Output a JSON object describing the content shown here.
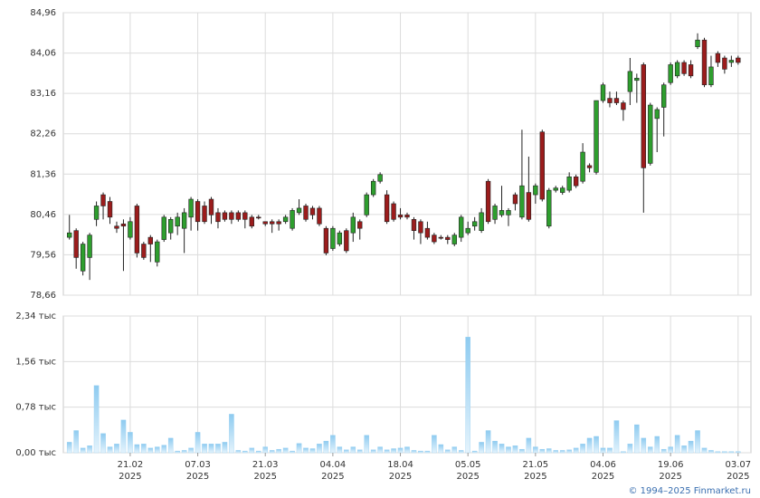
{
  "chart_data": [
    {
      "type": "candlestick",
      "up_color": "#2e9e2e",
      "down_color": "#9b1c1c",
      "ylim": [
        78.66,
        84.96
      ],
      "yticks": [
        {
          "value": 78.66,
          "label": "78,66"
        },
        {
          "value": 79.56,
          "label": "79,56"
        },
        {
          "value": 80.46,
          "label": "80,46"
        },
        {
          "value": 81.36,
          "label": "81,36"
        },
        {
          "value": 82.26,
          "label": "82,26"
        },
        {
          "value": 83.16,
          "label": "83,16"
        },
        {
          "value": 84.06,
          "label": "84,06"
        },
        {
          "value": 84.96,
          "label": "84,96"
        }
      ],
      "grid": true,
      "open": [
        79.95,
        80.1,
        79.2,
        79.5,
        80.35,
        80.9,
        80.75,
        80.2,
        80.25,
        79.95,
        80.65,
        79.8,
        79.95,
        79.4,
        79.9,
        80.05,
        80.2,
        80.15,
        80.4,
        80.75,
        80.65,
        80.8,
        80.5,
        80.5,
        80.5,
        80.5,
        80.5,
        80.4,
        80.4,
        80.3,
        80.3,
        80.3,
        80.3,
        80.15,
        80.5,
        80.65,
        80.6,
        80.6,
        80.15,
        79.7,
        79.8,
        80.1,
        80.05,
        80.3,
        80.45,
        80.9,
        81.2,
        80.9,
        80.7,
        80.45,
        80.45,
        80.35,
        80.3,
        80.15,
        80.0,
        79.95,
        79.95,
        79.8,
        79.95,
        80.05,
        80.2,
        80.1,
        81.2,
        80.35,
        80.45,
        80.45,
        80.9,
        80.4,
        80.95,
        80.9,
        82.3,
        80.2,
        81.0,
        80.95,
        81.0,
        81.3,
        81.2,
        81.55,
        81.4,
        83.0,
        83.05,
        83.05,
        82.95,
        83.2,
        83.45,
        83.8,
        81.6,
        82.6,
        82.85,
        83.4,
        83.55,
        83.85,
        83.8,
        84.2,
        84.35,
        83.35,
        84.05,
        83.95,
        83.85,
        83.95
      ],
      "high": [
        80.45,
        80.15,
        79.85,
        80.05,
        80.75,
        80.95,
        80.85,
        80.3,
        80.35,
        80.4,
        80.7,
        79.85,
        80.0,
        79.9,
        80.45,
        80.4,
        80.5,
        80.6,
        80.85,
        80.8,
        80.75,
        80.85,
        80.6,
        80.55,
        80.55,
        80.55,
        80.55,
        80.45,
        80.45,
        80.3,
        80.35,
        80.35,
        80.45,
        80.6,
        80.8,
        80.7,
        80.65,
        80.65,
        80.2,
        80.2,
        80.1,
        80.15,
        80.5,
        80.35,
        80.95,
        81.25,
        81.4,
        81.0,
        80.75,
        80.6,
        80.5,
        80.4,
        80.35,
        80.3,
        80.05,
        80.0,
        80.0,
        80.05,
        80.45,
        80.3,
        80.4,
        80.6,
        81.25,
        80.7,
        81.1,
        80.6,
        80.95,
        82.35,
        81.75,
        81.15,
        82.35,
        81.05,
        81.1,
        81.1,
        81.4,
        81.35,
        82.05,
        81.6,
        83.0,
        83.4,
        83.2,
        83.2,
        83.0,
        83.95,
        83.6,
        83.85,
        82.95,
        82.85,
        83.4,
        83.85,
        83.9,
        83.9,
        83.9,
        84.5,
        84.4,
        84.0,
        84.1,
        84.0,
        84.0,
        84.0
      ],
      "low": [
        79.9,
        79.25,
        79.1,
        79.0,
        80.2,
        80.35,
        80.25,
        80.05,
        79.2,
        79.9,
        79.5,
        79.45,
        79.4,
        79.3,
        79.85,
        79.9,
        80.0,
        79.6,
        80.1,
        80.1,
        80.25,
        80.25,
        80.15,
        80.3,
        80.25,
        80.3,
        80.15,
        80.15,
        80.35,
        80.2,
        80.05,
        80.1,
        80.25,
        80.1,
        80.45,
        80.3,
        80.35,
        80.2,
        79.55,
        79.65,
        79.75,
        79.6,
        79.85,
        79.9,
        80.4,
        80.85,
        81.15,
        80.25,
        80.3,
        80.35,
        80.35,
        79.9,
        79.8,
        79.9,
        79.8,
        79.9,
        79.8,
        79.75,
        79.85,
        80.0,
        80.1,
        80.05,
        80.25,
        80.25,
        80.4,
        80.2,
        80.55,
        80.35,
        80.3,
        80.7,
        80.75,
        80.15,
        80.95,
        80.9,
        80.95,
        81.05,
        81.15,
        81.4,
        81.35,
        82.95,
        82.85,
        82.9,
        82.55,
        82.9,
        82.95,
        80.5,
        81.55,
        81.85,
        82.2,
        83.35,
        83.5,
        83.55,
        83.5,
        84.15,
        83.3,
        83.3,
        83.75,
        83.6,
        83.75,
        83.8
      ],
      "close": [
        80.05,
        79.5,
        79.8,
        80.0,
        80.65,
        80.65,
        80.4,
        80.15,
        80.2,
        80.3,
        79.6,
        79.5,
        79.8,
        79.85,
        80.4,
        80.35,
        80.4,
        80.5,
        80.8,
        80.3,
        80.3,
        80.45,
        80.3,
        80.35,
        80.35,
        80.35,
        80.35,
        80.2,
        80.4,
        80.25,
        80.25,
        80.25,
        80.4,
        80.55,
        80.6,
        80.35,
        80.45,
        80.25,
        79.6,
        80.15,
        80.05,
        79.65,
        80.4,
        80.15,
        80.9,
        81.2,
        81.35,
        80.3,
        80.35,
        80.4,
        80.4,
        80.1,
        80.05,
        79.95,
        79.85,
        79.95,
        79.9,
        80.0,
        80.4,
        80.15,
        80.3,
        80.5,
        80.3,
        80.65,
        80.55,
        80.55,
        80.7,
        81.1,
        80.35,
        81.1,
        80.8,
        81.0,
        81.05,
        81.05,
        81.3,
        81.1,
        81.85,
        81.5,
        83.0,
        83.35,
        82.95,
        82.95,
        82.8,
        83.65,
        83.5,
        81.5,
        82.9,
        82.8,
        83.35,
        83.8,
        83.85,
        83.6,
        83.55,
        84.35,
        83.35,
        83.75,
        83.85,
        83.7,
        83.9,
        83.85
      ]
    },
    {
      "type": "bar",
      "color": "#8ecbf0",
      "ylim": [
        0,
        2.34
      ],
      "yticks": [
        {
          "value": 0,
          "label": "0,00 тыс"
        },
        {
          "value": 0.78,
          "label": "0,78 тыс"
        },
        {
          "value": 1.56,
          "label": "1,56 тыс"
        },
        {
          "value": 2.34,
          "label": "2,34 тыс"
        }
      ],
      "grid": true,
      "xlim": [
        -0.9,
        100.9
      ],
      "xticks": [
        {
          "value": 9,
          "label": "21.02",
          "year": "2025"
        },
        {
          "value": 19,
          "label": "07.03",
          "year": "2025"
        },
        {
          "value": 29,
          "label": "21.03",
          "year": "2025"
        },
        {
          "value": 39,
          "label": "04.04",
          "year": "2025"
        },
        {
          "value": 49,
          "label": "18.04",
          "year": "2025"
        },
        {
          "value": 59,
          "label": "05.05",
          "year": "2025"
        },
        {
          "value": 69,
          "label": "21.05",
          "year": "2025"
        },
        {
          "value": 79,
          "label": "04.06",
          "year": "2025"
        },
        {
          "value": 89,
          "label": "19.06",
          "year": "2025"
        },
        {
          "value": 99,
          "label": "03.07",
          "year": "2025"
        }
      ],
      "values": [
        0.18,
        0.38,
        0.08,
        0.12,
        1.15,
        0.33,
        0.1,
        0.15,
        0.56,
        0.35,
        0.14,
        0.15,
        0.08,
        0.1,
        0.13,
        0.25,
        0.03,
        0.04,
        0.08,
        0.35,
        0.15,
        0.15,
        0.15,
        0.18,
        0.66,
        0.04,
        0.03,
        0.08,
        0.03,
        0.1,
        0.04,
        0.06,
        0.08,
        0.03,
        0.16,
        0.08,
        0.07,
        0.15,
        0.2,
        0.3,
        0.1,
        0.05,
        0.1,
        0.05,
        0.3,
        0.05,
        0.1,
        0.05,
        0.07,
        0.08,
        0.1,
        0.04,
        0.03,
        0.03,
        0.3,
        0.14,
        0.05,
        0.1,
        0.04,
        1.98,
        0.03,
        0.18,
        0.38,
        0.2,
        0.15,
        0.1,
        0.12,
        0.06,
        0.25,
        0.1,
        0.06,
        0.07,
        0.04,
        0.04,
        0.05,
        0.08,
        0.15,
        0.25,
        0.28,
        0.08,
        0.08,
        0.55,
        0.02,
        0.15,
        0.48,
        0.25,
        0.1,
        0.28,
        0.06,
        0.1,
        0.3,
        0.12,
        0.2,
        0.38,
        0.08,
        0.04,
        0.02,
        0.02,
        0.02,
        0.02
      ]
    }
  ],
  "footer": "© 1994–2025 Finmarket.ru"
}
